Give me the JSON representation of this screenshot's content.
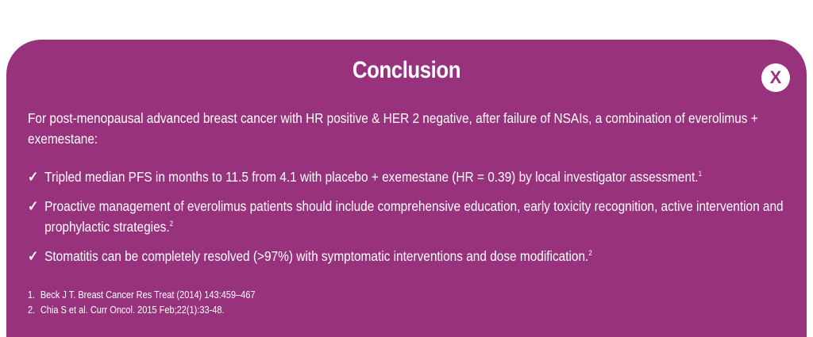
{
  "panel": {
    "title": "Conclusion",
    "close_label": "X",
    "intro": "For post-menopausal advanced breast cancer with HR positive & HER 2 negative, after failure of NSAIs, a combination of everolimus + exemestane:",
    "bullets": [
      {
        "text": "Tripled median PFS in months to 11.5 from 4.1 with placebo + exemestane (HR = 0.39) by local investigator assessment.",
        "ref": "1"
      },
      {
        "text": "Proactive management of everolimus patients should include comprehensive education, early toxicity recognition, active intervention and prophylactic strategies.",
        "ref": "2"
      },
      {
        "text": "Stomatitis can be completely resolved (>97%) with symptomatic interventions and dose modification.",
        "ref": "2"
      }
    ],
    "references": [
      {
        "num": "1.",
        "text": "Beck J T. Breast Cancer Res Treat (2014) 143:459–467"
      },
      {
        "num": "2.",
        "text": "Chia S et al. Curr Oncol. 2015 Feb;22(1):33-48."
      }
    ],
    "bullet_icon": "check-icon",
    "colors": {
      "panel_bg": "#98327c",
      "text": "#ffffff",
      "close_bg": "#ffffff"
    }
  }
}
